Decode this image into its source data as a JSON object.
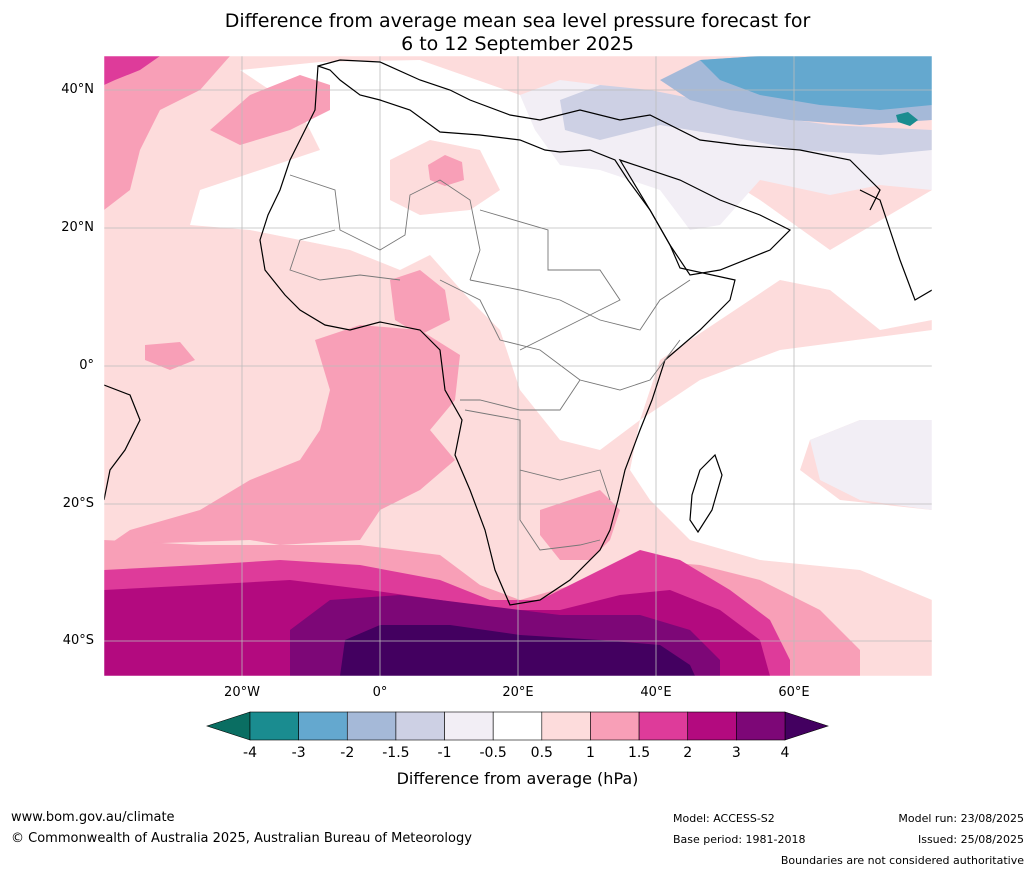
{
  "title": {
    "line1": "Difference from average mean sea level pressure forecast for",
    "line2": "6 to 12 September 2025"
  },
  "axes": {
    "lat_labels": [
      "40°N",
      "20°N",
      "0°",
      "20°S",
      "40°S"
    ],
    "lon_labels": [
      "20°W",
      "0°",
      "20°E",
      "40°E",
      "60°E"
    ]
  },
  "colorbar": {
    "ticks": [
      "-4",
      "-3",
      "-2",
      "-1.5",
      "-1",
      "-0.5",
      "0.5",
      "1",
      "1.5",
      "2",
      "3",
      "4"
    ],
    "colors": [
      "#1a8c90",
      "#64a8cf",
      "#a5b9d8",
      "#cdd0e4",
      "#f2eef5",
      "#ffffff",
      "#fddcdc",
      "#f89fb7",
      "#de3b9a",
      "#b30a7f",
      "#7d0777"
    ],
    "under_color": "#0a6e62",
    "over_color": "#430060",
    "label": "Difference from average (hPa)"
  },
  "footer": {
    "website": "www.bom.gov.au/climate",
    "copyright": "© Commonwealth of Australia 2025, Australian Bureau of Meteorology",
    "model": "Model: ACCESS-S2",
    "base_period": "Base period: 1981-2018",
    "model_run": "Model run: 23/08/2025",
    "issued": "Issued: 25/08/2025",
    "disclaimer": "Boundaries are not considered authoritative"
  }
}
